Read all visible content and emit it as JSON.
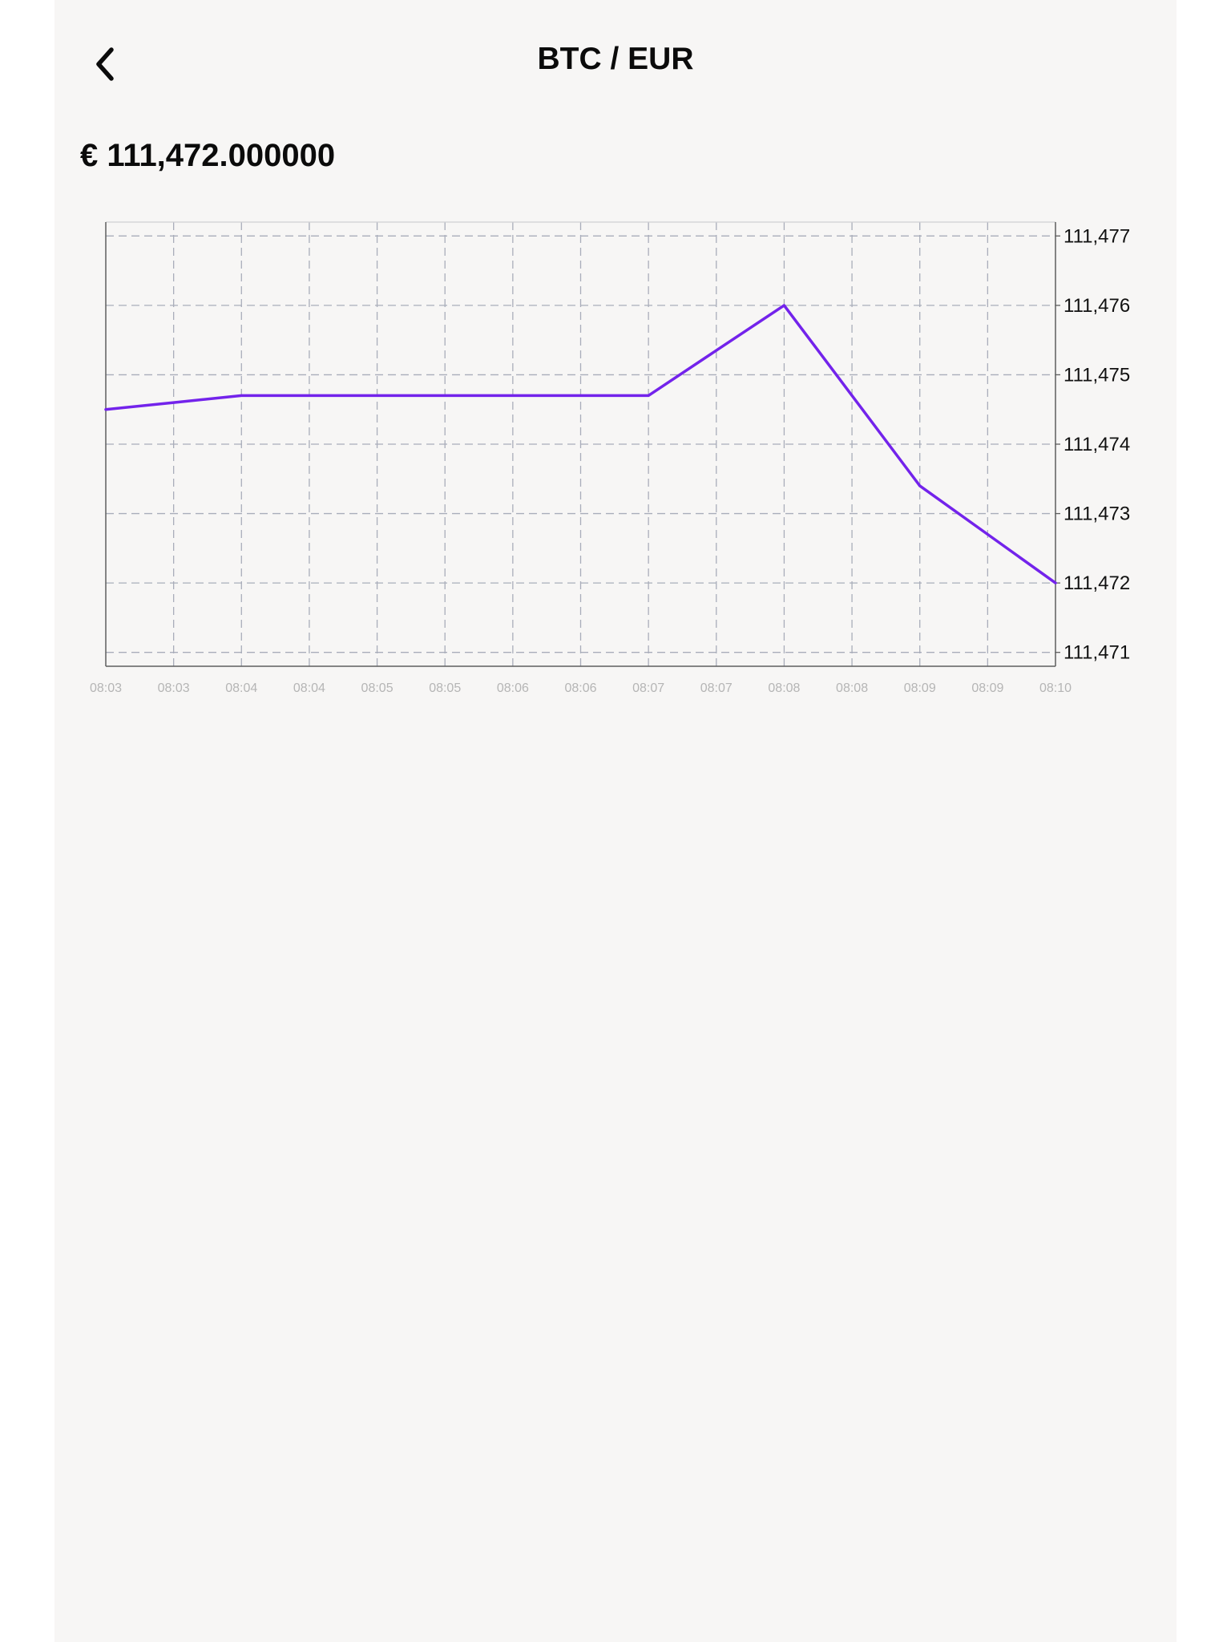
{
  "header": {
    "title": "BTC / EUR",
    "back_icon": "chevron-left-icon"
  },
  "price": {
    "display": "€ 111,472.000000"
  },
  "colors": {
    "line": "#7323eb",
    "grid": "#a9adba",
    "axis": "#5e5e5e",
    "background": "#f7f6f5"
  },
  "chart_data": {
    "type": "line",
    "x": [
      "08:03",
      "08:03",
      "08:04",
      "08:04",
      "08:05",
      "08:05",
      "08:06",
      "08:06",
      "08:07",
      "08:07",
      "08:08",
      "08:08",
      "08:09",
      "08:09",
      "08:10"
    ],
    "series": [
      {
        "values": [
          111474.5,
          111474.6,
          111474.7,
          111474.7,
          111474.7,
          111474.7,
          111474.7,
          111474.7,
          111474.7,
          111475.35,
          111476,
          111474.7,
          111473.4,
          111472.7,
          111472
        ]
      }
    ],
    "y_ticks": [
      "111,477",
      "111,476",
      "111,475",
      "111,474",
      "111,473",
      "111,472",
      "111,471"
    ],
    "ylim": [
      111470.8,
      111477.2
    ],
    "grid": true,
    "y_axis_side": "right"
  }
}
